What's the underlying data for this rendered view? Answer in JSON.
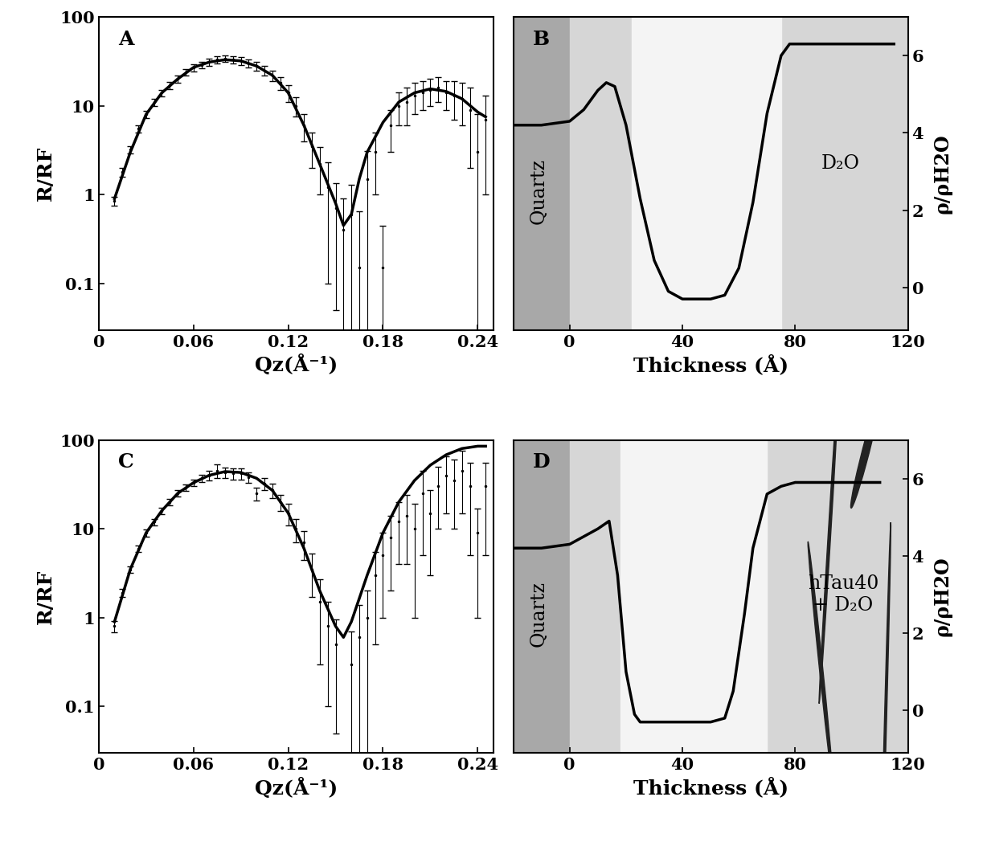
{
  "chart_data": [
    {
      "type": "scatter",
      "xlabel": "Qz(Å⁻¹)",
      "ylabel": "R/RF",
      "log": "y",
      "xlim": [
        0,
        0.25
      ],
      "ylim": [
        0.03,
        100
      ],
      "xticks": [
        0,
        0.06,
        0.12,
        0.18,
        0.24
      ],
      "yticks": [
        0.1,
        1,
        10,
        100
      ],
      "annotations": [
        "A"
      ],
      "series": [
        {
          "type": "scatter",
          "color": "#000000",
          "marker": "dot",
          "x": [
            0.01,
            0.015,
            0.02,
            0.025,
            0.03,
            0.035,
            0.04,
            0.045,
            0.05,
            0.055,
            0.06,
            0.065,
            0.07,
            0.075,
            0.08,
            0.085,
            0.09,
            0.095,
            0.1,
            0.105,
            0.11,
            0.115,
            0.12,
            0.125,
            0.13,
            0.135,
            0.14,
            0.145,
            0.15,
            0.155,
            0.16,
            0.165,
            0.17,
            0.175,
            0.18,
            0.185,
            0.19,
            0.195,
            0.2,
            0.205,
            0.21,
            0.215,
            0.22,
            0.225,
            0.23,
            0.235,
            0.24,
            0.245
          ],
          "values": [
            0.85,
            1.8,
            3.2,
            5.5,
            8,
            11,
            14,
            17,
            20,
            24,
            27,
            29,
            31,
            33,
            34,
            33,
            32,
            30,
            28,
            25,
            22,
            18,
            14,
            10,
            6,
            3.5,
            2.2,
            1.2,
            0.7,
            0.4,
            0.6,
            0.15,
            1.5,
            3,
            0.15,
            6,
            10,
            11,
            13,
            14,
            15,
            16,
            14,
            13,
            12,
            9,
            3,
            7
          ],
          "errors": [
            0.1,
            0.2,
            0.3,
            0.5,
            0.7,
            1,
            1.2,
            1.5,
            1.8,
            2,
            2.5,
            2.5,
            3,
            3,
            3,
            3,
            3,
            3,
            3,
            3,
            3,
            3,
            3,
            2.5,
            2,
            1.5,
            1.2,
            1.1,
            0.65,
            0.5,
            0.7,
            0.5,
            1.6,
            2,
            0.3,
            3,
            4,
            5,
            5,
            5,
            5,
            5,
            5,
            6,
            6,
            7,
            5,
            6
          ]
        },
        {
          "type": "line",
          "color": "#000000",
          "line_style": "solid",
          "x": [
            0.01,
            0.02,
            0.03,
            0.04,
            0.05,
            0.06,
            0.07,
            0.08,
            0.09,
            0.1,
            0.11,
            0.12,
            0.13,
            0.14,
            0.15,
            0.155,
            0.16,
            0.165,
            0.17,
            0.18,
            0.19,
            0.2,
            0.21,
            0.22,
            0.23,
            0.24,
            0.245
          ],
          "values": [
            0.9,
            3,
            8,
            14,
            20,
            27,
            31,
            33,
            32,
            28,
            22,
            14,
            6,
            2.2,
            0.8,
            0.45,
            0.6,
            1.5,
            3,
            6.5,
            11,
            14,
            15.5,
            14.5,
            12,
            8.5,
            7.5
          ]
        }
      ]
    },
    {
      "type": "line",
      "xlabel": "Thickness (Å)",
      "ylabel": "ρ/ρH2O",
      "xlim": [
        -20,
        120
      ],
      "ylim": [
        -1.1,
        7
      ],
      "xticks": [
        0,
        40,
        80,
        120
      ],
      "yticks": [
        0,
        2,
        4,
        6
      ],
      "annotations": [
        "B",
        "Quartz",
        "D₂O"
      ],
      "series": [
        {
          "type": "line",
          "color": "#000000",
          "line_style": "solid",
          "x": [
            -20,
            -10,
            0,
            5,
            10,
            13,
            16,
            20,
            25,
            30,
            35,
            40,
            45,
            50,
            55,
            60,
            65,
            70,
            75,
            78,
            82,
            90,
            100,
            115
          ],
          "values": [
            4.2,
            4.2,
            4.3,
            4.6,
            5.1,
            5.3,
            5.2,
            4.2,
            2.3,
            0.7,
            -0.1,
            -0.3,
            -0.3,
            -0.3,
            -0.2,
            0.5,
            2.2,
            4.5,
            6.0,
            6.3,
            6.3,
            6.3,
            6.3,
            6.3
          ]
        }
      ]
    },
    {
      "type": "scatter",
      "xlabel": "Qz(Å⁻¹)",
      "ylabel": "R/RF",
      "log": "y",
      "xlim": [
        0,
        0.25
      ],
      "ylim": [
        0.03,
        100
      ],
      "xticks": [
        0,
        0.06,
        0.12,
        0.18,
        0.24
      ],
      "yticks": [
        0.1,
        1,
        10,
        100
      ],
      "annotations": [
        "C"
      ],
      "series": [
        {
          "type": "scatter",
          "color": "#000000",
          "marker": "dot",
          "x": [
            0.01,
            0.015,
            0.02,
            0.025,
            0.03,
            0.035,
            0.04,
            0.045,
            0.05,
            0.055,
            0.06,
            0.065,
            0.07,
            0.075,
            0.08,
            0.085,
            0.09,
            0.095,
            0.1,
            0.105,
            0.11,
            0.115,
            0.12,
            0.125,
            0.13,
            0.135,
            0.14,
            0.145,
            0.15,
            0.16,
            0.165,
            0.17,
            0.175,
            0.18,
            0.185,
            0.19,
            0.195,
            0.2,
            0.205,
            0.21,
            0.215,
            0.22,
            0.225,
            0.23,
            0.235,
            0.24,
            0.245
          ],
          "values": [
            0.8,
            1.9,
            3.5,
            6,
            9,
            12,
            16,
            20,
            25,
            29,
            33,
            37,
            40,
            45,
            43,
            42,
            42,
            38,
            25,
            32,
            27,
            20,
            15,
            10,
            7,
            3.5,
            1.5,
            0.8,
            0.5,
            0.3,
            0.6,
            1,
            3,
            5,
            8,
            12,
            14,
            10,
            25,
            15,
            30,
            40,
            35,
            45,
            30,
            9,
            30
          ],
          "errors": [
            0.12,
            0.2,
            0.3,
            0.5,
            0.8,
            1,
            1.3,
            1.6,
            2,
            2.5,
            3,
            3.5,
            5,
            8,
            6,
            6,
            6,
            5,
            4,
            5,
            5,
            4,
            4,
            3,
            2.5,
            1.8,
            1.2,
            0.7,
            0.45,
            0.4,
            0.8,
            1,
            2.5,
            4,
            6,
            8,
            10,
            9,
            20,
            12,
            20,
            25,
            25,
            30,
            25,
            8,
            25
          ]
        },
        {
          "type": "line",
          "color": "#000000",
          "line_style": "solid",
          "x": [
            0.01,
            0.02,
            0.03,
            0.04,
            0.05,
            0.06,
            0.07,
            0.08,
            0.09,
            0.1,
            0.11,
            0.12,
            0.13,
            0.14,
            0.15,
            0.155,
            0.16,
            0.17,
            0.18,
            0.19,
            0.2,
            0.21,
            0.22,
            0.23,
            0.24,
            0.245
          ],
          "values": [
            0.9,
            3.5,
            9,
            16,
            25,
            33,
            40,
            44,
            43,
            37,
            27,
            15,
            6,
            2,
            0.8,
            0.6,
            0.9,
            3,
            9,
            20,
            35,
            52,
            68,
            80,
            85,
            85
          ]
        }
      ]
    },
    {
      "type": "line",
      "xlabel": "Thickness (Å)",
      "ylabel": "ρ/ρH2O",
      "xlim": [
        -20,
        120
      ],
      "ylim": [
        -1.1,
        7
      ],
      "xticks": [
        0,
        40,
        80,
        120
      ],
      "yticks": [
        0,
        2,
        4,
        6
      ],
      "annotations": [
        "D",
        "Quartz",
        "hTau40\n+ D₂O"
      ],
      "series": [
        {
          "type": "line",
          "color": "#000000",
          "line_style": "solid",
          "x": [
            -20,
            -10,
            0,
            5,
            10,
            14,
            17,
            20,
            23,
            25,
            30,
            40,
            50,
            55,
            58,
            62,
            65,
            70,
            75,
            80,
            90,
            100,
            110
          ],
          "values": [
            4.2,
            4.2,
            4.3,
            4.5,
            4.7,
            4.9,
            3.5,
            1.0,
            -0.1,
            -0.3,
            -0.3,
            -0.3,
            -0.3,
            -0.2,
            0.5,
            2.5,
            4.2,
            5.6,
            5.8,
            5.9,
            5.9,
            5.9,
            5.9
          ]
        }
      ]
    }
  ]
}
